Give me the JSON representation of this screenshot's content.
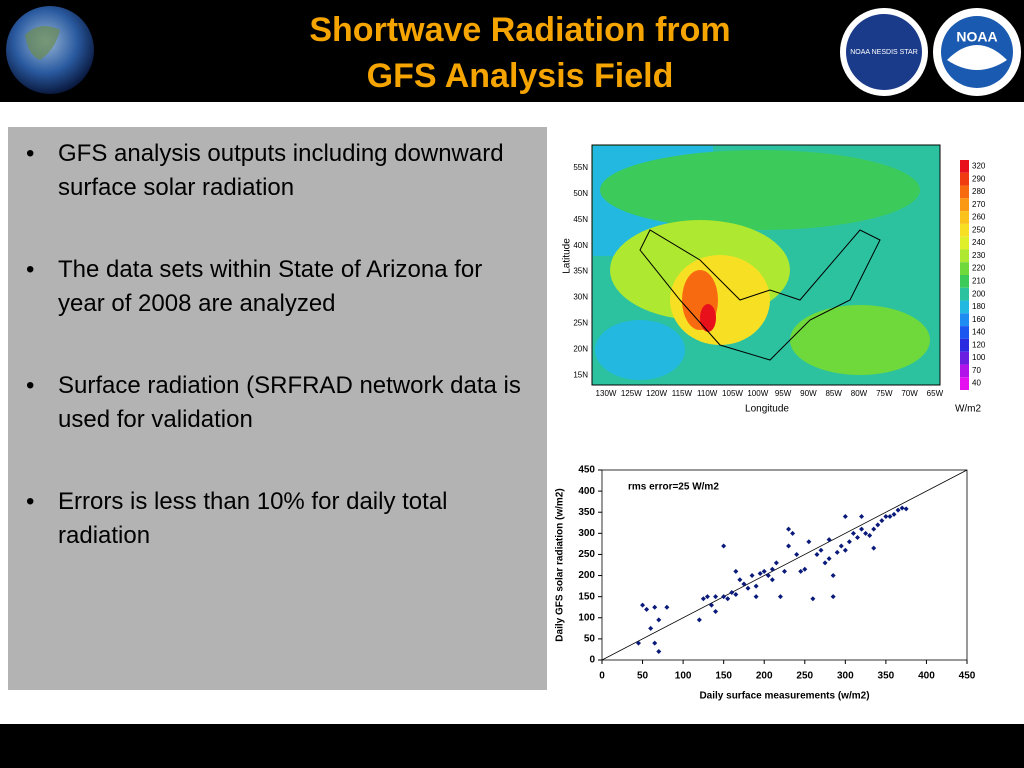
{
  "header": {
    "title_lines": [
      "Shortwave Radiation from",
      "GFS Analysis Field"
    ],
    "logo_left": "NOAA NESDIS STAR",
    "logo_right": "NOAA"
  },
  "bullets": [
    "GFS analysis outputs including downward surface solar radiation",
    "The data sets within State of Arizona for year of 2008 are analyzed",
    "Surface radiation (SRFRAD network data is used for validation",
    "Errors is less than 10% for daily total radiation"
  ],
  "map": {
    "lat_labels": [
      "55N",
      "50N",
      "45N",
      "40N",
      "35N",
      "30N",
      "25N",
      "20N",
      "15N"
    ],
    "lon_labels": [
      "130W",
      "125W",
      "120W",
      "115W",
      "110W",
      "105W",
      "100W",
      "95W",
      "90W",
      "85W",
      "80W",
      "75W",
      "70W",
      "65W"
    ],
    "xlabel": "Longitude",
    "ylabel": "Latitude",
    "units": "W/m2",
    "colorbar": {
      "ticks": [
        320,
        290,
        280,
        270,
        260,
        250,
        240,
        230,
        220,
        210,
        200,
        180,
        160,
        140,
        120,
        100,
        70,
        40
      ],
      "colors": [
        "#e8101a",
        "#f03a10",
        "#f86a10",
        "#fa9a14",
        "#fbc21c",
        "#f7e024",
        "#dff02a",
        "#aee830",
        "#6fd83a",
        "#3ccb5a",
        "#2cc2a0",
        "#22b8e0",
        "#1e8cf0",
        "#1c58f0",
        "#2a2ae0",
        "#6a1ee0",
        "#b014e8",
        "#e410f0"
      ]
    }
  },
  "chart_data": {
    "type": "scatter",
    "annotation": "rms error=25 W/m2",
    "xlabel": "Daily surface measurements (w/m2)",
    "ylabel": "Daily GFS solar radiation (w/m2)",
    "color": "#0a1a7a",
    "xlim": [
      0,
      450
    ],
    "ylim": [
      0,
      450
    ],
    "xticks": [
      0,
      50,
      100,
      150,
      200,
      250,
      300,
      350,
      400,
      450
    ],
    "yticks": [
      0,
      50,
      100,
      150,
      200,
      250,
      300,
      350,
      400,
      450
    ],
    "x": [
      45,
      50,
      55,
      60,
      65,
      65,
      70,
      70,
      80,
      120,
      125,
      130,
      135,
      140,
      140,
      150,
      155,
      160,
      165,
      165,
      170,
      175,
      180,
      185,
      190,
      195,
      200,
      205,
      210,
      215,
      220,
      225,
      230,
      235,
      240,
      245,
      250,
      255,
      260,
      265,
      270,
      275,
      280,
      285,
      290,
      295,
      300,
      305,
      310,
      315,
      320,
      325,
      330,
      335,
      340,
      345,
      350,
      355,
      360,
      365,
      370,
      375,
      150,
      230,
      285,
      335,
      210,
      190,
      300,
      320,
      280
    ],
    "y": [
      40,
      130,
      120,
      75,
      125,
      40,
      20,
      95,
      125,
      95,
      145,
      150,
      130,
      150,
      115,
      150,
      145,
      160,
      155,
      210,
      190,
      180,
      170,
      200,
      175,
      205,
      210,
      200,
      215,
      230,
      150,
      210,
      270,
      300,
      250,
      210,
      215,
      280,
      145,
      250,
      260,
      230,
      285,
      200,
      255,
      270,
      260,
      280,
      300,
      290,
      310,
      300,
      295,
      310,
      320,
      330,
      340,
      340,
      345,
      355,
      360,
      358,
      270,
      310,
      150,
      265,
      190,
      150,
      340,
      340,
      240
    ]
  }
}
